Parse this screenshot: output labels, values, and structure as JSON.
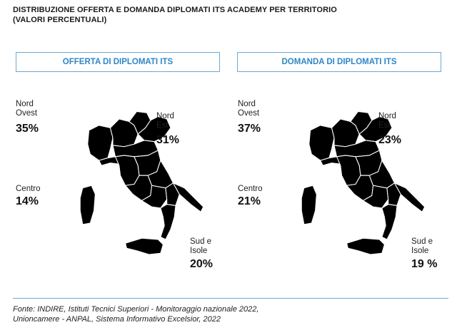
{
  "title": {
    "line1": "DISTRIBUZIONE OFFERTA E DOMANDA DIPLOMATI ITS ACADEMY PER TERRITORIO",
    "line2": "(VALORI PERCENTUALI)"
  },
  "colors": {
    "header_border": "#6ea9d3",
    "header_text": "#2f86c6",
    "level_very_high": "#3a87c8",
    "level_high": "#7fb1dd",
    "level_mid": "#a9c9e8",
    "level_low": "#cfe0f1",
    "level_none": "#d2d5d8"
  },
  "panels": [
    {
      "header": "OFFERTA DI DIPLOMATI ITS",
      "areas": {
        "nord_ovest": {
          "label1": "Nord",
          "label2": "Ovest",
          "value": "35%"
        },
        "nord_est": {
          "label1": "Nord",
          "label2": "Est",
          "value": "31%"
        },
        "centro": {
          "label1": "Centro",
          "value": "14%"
        },
        "sud": {
          "label1": "Sud e",
          "label2": "Isole",
          "value": "20%"
        }
      }
    },
    {
      "header": "DOMANDA DI DIPLOMATI ITS",
      "areas": {
        "nord_ovest": {
          "label1": "Nord",
          "label2": "Ovest",
          "value": "37%"
        },
        "nord_est": {
          "label1": "Nord",
          "label2": "Est",
          "value": "23%"
        },
        "centro": {
          "label1": "Centro",
          "value": "21%"
        },
        "sud": {
          "label1": "Sud e",
          "label2": "Isole",
          "value": "19 %"
        }
      }
    }
  ],
  "source": {
    "line1": "Fonte: INDIRE, Istituti Tecnici Superiori - Monitoraggio nazionale 2022,",
    "line2": "Unioncamere - ANPAL, Sistema Informativo Excelsior, 2022"
  }
}
